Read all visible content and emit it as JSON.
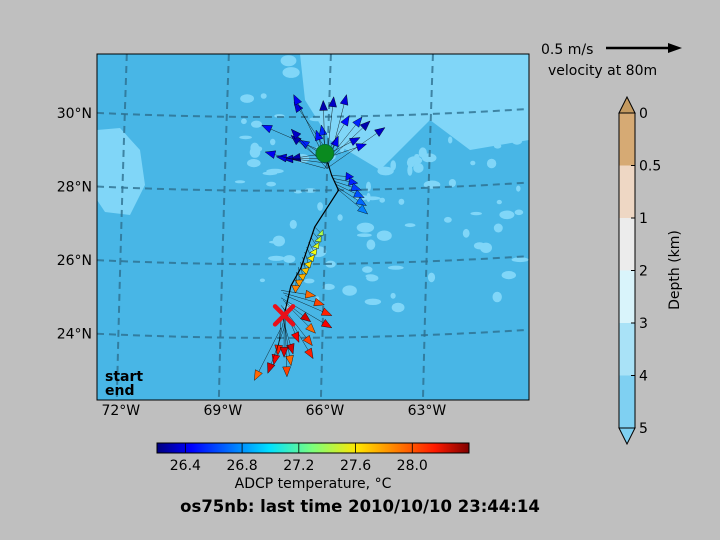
{
  "title": "os75nb: last time 2010/10/10 23:44:14",
  "chart_data": {
    "type": "scatter",
    "lon_ticks": [
      "72°W",
      "69°W",
      "66°W",
      "63°W"
    ],
    "lat_ticks": [
      "30°N",
      "28°N",
      "26°N",
      "24°N"
    ],
    "lon_range": [
      -72.7,
      -60
    ],
    "lat_range": [
      22.2,
      31.6
    ],
    "legend": {
      "start": "start",
      "end": "end"
    },
    "start_point": {
      "lon": -66,
      "lat": 28.9
    },
    "end_point": {
      "lon": -67.2,
      "lat": 24.5
    },
    "ship_track": [
      {
        "lon": -66.0,
        "lat": 28.9,
        "temp": 26.5
      },
      {
        "lon": -65.8,
        "lat": 28.3,
        "temp": 26.5
      },
      {
        "lon": -65.6,
        "lat": 27.9,
        "temp": 26.8
      },
      {
        "lon": -66.3,
        "lat": 26.9,
        "temp": 27.2
      },
      {
        "lon": -66.7,
        "lat": 25.8,
        "temp": 27.6
      },
      {
        "lon": -67.0,
        "lat": 25.3,
        "temp": 27.8
      },
      {
        "lon": -67.2,
        "lat": 24.5,
        "temp": 28.2
      }
    ],
    "velocity_scale": {
      "label": "0.5 m/s",
      "caption": "velocity at 80m"
    },
    "temperature_colorbar": {
      "label": "ADCP temperature, °C",
      "ticks": [
        "26.4",
        "26.8",
        "27.2",
        "27.6",
        "28.0"
      ],
      "range": [
        26.2,
        28.4
      ]
    },
    "depth_colorbar": {
      "label": "Depth (km)",
      "ticks": [
        "0",
        "0.5",
        "1",
        "2",
        "3",
        "4",
        "5"
      ],
      "colors": [
        "#c49a60",
        "#d6aa74",
        "#eed7c4",
        "#ececec",
        "#d9f4fb",
        "#a9e2f7",
        "#7fd0f2"
      ]
    },
    "colors": {
      "deep_water": "#48b6e6",
      "shallow_water": "#80d6f8",
      "start": "#0a8a1f",
      "end": "#e8101a"
    }
  }
}
